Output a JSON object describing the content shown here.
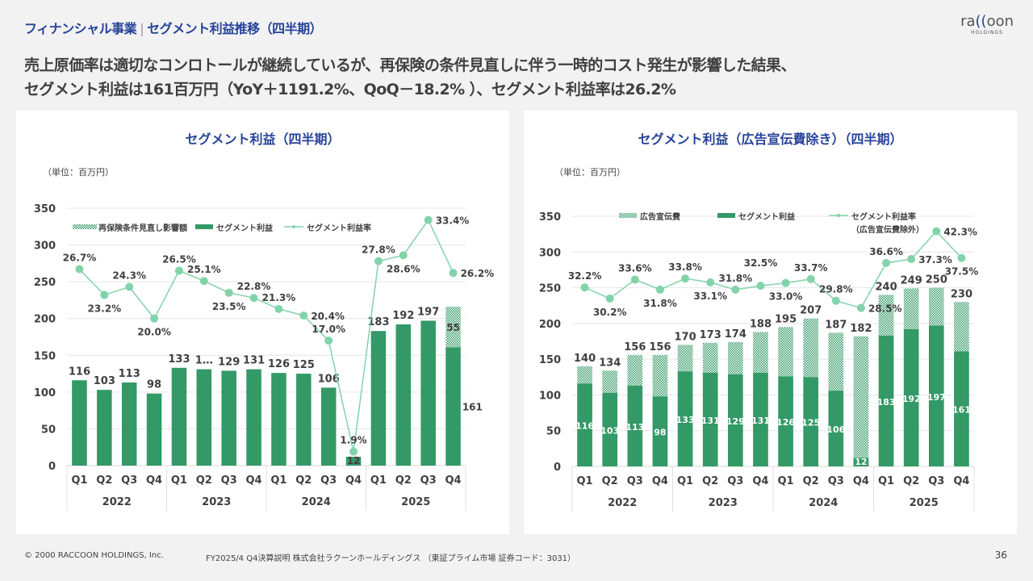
{
  "header": {
    "section": "フィナンシャル事業",
    "title": "セグメント利益推移（四半期）"
  },
  "logo": {
    "text": "raccoon",
    "sub": "HOLDINGS"
  },
  "lead": {
    "line1": "売上原価率は適切なコンロトールが継続しているが、再保険の条件見直しに伴う一時的コスト発生が影響した結果、",
    "line2": "セグメント利益は161百万円（YoY＋1191.2%、QoQ－18.2% ）、セグメント利益率は26.2%"
  },
  "colors": {
    "title": "#27439a",
    "bar": "#339966",
    "line": "#82d3aa"
  },
  "chart_data": [
    {
      "type": "bar+line",
      "title": "セグメント利益（四半期）",
      "unit": "（単位：百万円）",
      "categories": [
        "Q1",
        "Q2",
        "Q3",
        "Q4",
        "Q1",
        "Q2",
        "Q3",
        "Q4",
        "Q1",
        "Q2",
        "Q3",
        "Q4",
        "Q1",
        "Q2",
        "Q3",
        "Q4"
      ],
      "years": [
        "2022",
        "2023",
        "2024",
        "2025"
      ],
      "ylim": [
        0,
        350
      ],
      "yticks": [
        0,
        50,
        100,
        150,
        200,
        250,
        300,
        350
      ],
      "legend": [
        "再保険条件見直し影響額",
        "セグメント利益",
        "セグメント利益率"
      ],
      "series": [
        {
          "name": "セグメント利益",
          "values": [
            116,
            103,
            113,
            98,
            133,
            131,
            129,
            131,
            126,
            125,
            106,
            12,
            183,
            192,
            197,
            161
          ],
          "labels": [
            "116",
            "103",
            "113",
            "98",
            "133",
            "1…",
            "129",
            "131",
            "126",
            "125",
            "106",
            "12",
            "183",
            "192",
            "197",
            "161"
          ]
        },
        {
          "name": "再保険条件見直し影響額",
          "values": [
            0,
            0,
            0,
            0,
            0,
            0,
            0,
            0,
            0,
            0,
            0,
            0,
            0,
            0,
            0,
            55
          ]
        },
        {
          "name": "セグメント利益率",
          "unit": "%",
          "values": [
            26.7,
            23.2,
            24.3,
            20.0,
            26.5,
            25.1,
            23.5,
            22.8,
            21.3,
            20.4,
            17.0,
            1.9,
            27.8,
            28.6,
            33.4,
            26.2
          ]
        }
      ],
      "secondary_ylim": [
        0,
        35
      ]
    },
    {
      "type": "bar+line",
      "title": "セグメント利益（広告宣伝費除き）（四半期）",
      "unit": "（単位：百万円）",
      "categories": [
        "Q1",
        "Q2",
        "Q3",
        "Q4",
        "Q1",
        "Q2",
        "Q3",
        "Q4",
        "Q1",
        "Q2",
        "Q3",
        "Q4",
        "Q1",
        "Q2",
        "Q3",
        "Q4"
      ],
      "years": [
        "2022",
        "2023",
        "2024",
        "2025"
      ],
      "ylim": [
        0,
        350
      ],
      "yticks": [
        0,
        50,
        100,
        150,
        200,
        250,
        300,
        350
      ],
      "legend": [
        "広告宣伝費",
        "セグメント利益",
        "セグメント利益率",
        "（広告宣伝費除外）"
      ],
      "series": [
        {
          "name": "セグメント利益",
          "values": [
            116,
            103,
            113,
            98,
            133,
            131,
            129,
            131,
            126,
            125,
            106,
            12,
            183,
            192,
            197,
            161
          ]
        },
        {
          "name": "広告宣伝費",
          "values": [
            24,
            31,
            43,
            58,
            37,
            42,
            45,
            57,
            69,
            82,
            81,
            170,
            57,
            57,
            53,
            69
          ]
        },
        {
          "name": "合計",
          "values": [
            140,
            134,
            156,
            156,
            170,
            173,
            174,
            188,
            195,
            207,
            187,
            182,
            240,
            249,
            250,
            230
          ]
        },
        {
          "name": "セグメント利益率（広告宣伝費除外）",
          "unit": "%",
          "values": [
            32.2,
            30.2,
            33.6,
            31.8,
            33.8,
            33.1,
            31.8,
            32.5,
            33.0,
            33.7,
            29.8,
            28.5,
            36.6,
            37.3,
            42.3,
            37.5
          ]
        }
      ],
      "secondary_ylim": [
        0,
        45
      ]
    }
  ],
  "footer": {
    "copyright": "© 2000 RACCOON HOLDINGS, Inc.",
    "doc": "FY2025/4 Q4決算説明 株式会社ラクーンホールディングス （東証プライム市場 証券コード：3031）",
    "page": "36"
  }
}
